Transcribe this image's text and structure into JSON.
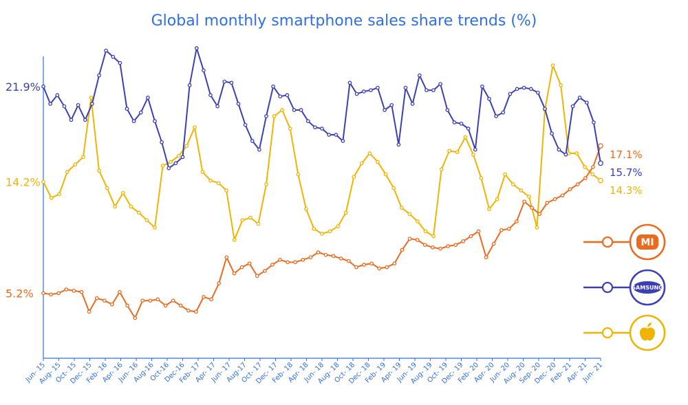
{
  "chart_data": {
    "type": "line",
    "title": "Global monthly smartphone sales share trends (%)",
    "xlabel": "",
    "ylabel": "",
    "ylim": [
      0,
      25
    ],
    "x_tick_labels": [
      "Jun- 15",
      "Aug- 15",
      "Oct- 15",
      "Dec- 15",
      "Feb- 16",
      "Apr- 16",
      "Jun- 16",
      "Aug-16",
      "Oct-16",
      "Dec-16",
      "Feb- 17",
      "Apr- 17",
      "Jun- 17",
      "Aug-17",
      "Oct- 17",
      "Dec- 17",
      "Feb- 18",
      "Apr- 18",
      "Jun- 18",
      "Aug- 18",
      "Oct- 18",
      "Dec- 18",
      "Feb- 19",
      "Apr- 19",
      "Jun- 19",
      "Aug- 19",
      "Oct- 19",
      "Dec- 19",
      "Feb- 20",
      "Apr- 20",
      "Jun- 20",
      "Aug- 20",
      "Sep- 20",
      "Dec- 20",
      "Feb- 21",
      "Apr- 21",
      "Jun- 21"
    ],
    "y_start_labels": [
      {
        "text": "21.9%",
        "value": 21.9,
        "series": "Samsung"
      },
      {
        "text": "14.2%",
        "value": 14.2,
        "series": "Apple"
      },
      {
        "text": "5.2%",
        "value": 5.2,
        "series": "Xiaomi"
      }
    ],
    "series": [
      {
        "name": "Samsung",
        "color": "#3b3fb5",
        "end_label": "15.7%",
        "icon_label": "SAMSUNG",
        "values": [
          21.9,
          20.5,
          21.2,
          20.3,
          19.2,
          20.4,
          19.2,
          20.5,
          22.8,
          24.8,
          24.3,
          23.8,
          20.1,
          19.1,
          19.8,
          21.0,
          19.1,
          17.4,
          15.3,
          15.7,
          16.2,
          22.0,
          25.0,
          23.2,
          21.2,
          20.3,
          22.3,
          22.2,
          20.5,
          18.8,
          17.5,
          16.8,
          19.5,
          21.9,
          21.1,
          21.2,
          20.0,
          20.0,
          19.1,
          18.6,
          18.5,
          18.0,
          18.0,
          17.5,
          22.2,
          21.3,
          21.5,
          21.6,
          21.8,
          20.0,
          20.4,
          17.2,
          21.8,
          20.5,
          22.8,
          21.6,
          21.6,
          22.1,
          20.0,
          19.0,
          18.9,
          18.5,
          16.8,
          21.9,
          20.9,
          19.5,
          19.8,
          21.3,
          21.7,
          21.8,
          21.7,
          21.4,
          20.1,
          18.1,
          16.8,
          16.4,
          20.3,
          21.0,
          20.6,
          19.0,
          15.7
        ]
      },
      {
        "name": "Apple",
        "color": "#f0b400",
        "end_label": "14.3%",
        "icon_label": "",
        "values": [
          14.2,
          12.9,
          13.2,
          15.0,
          15.6,
          16.2,
          21.0,
          15.1,
          13.7,
          12.2,
          13.3,
          12.2,
          11.7,
          11.1,
          10.5,
          15.5,
          15.8,
          16.3,
          17.1,
          18.6,
          15.0,
          14.3,
          14.1,
          13.5,
          9.5,
          11.1,
          11.3,
          10.8,
          14.0,
          19.5,
          20.0,
          18.5,
          14.8,
          12.0,
          10.4,
          10.0,
          10.2,
          10.6,
          11.7,
          14.6,
          15.7,
          16.5,
          15.8,
          14.8,
          13.7,
          12.1,
          11.6,
          11.0,
          10.2,
          9.8,
          15.2,
          16.7,
          16.6,
          17.8,
          16.4,
          14.5,
          12.0,
          12.8,
          14.8,
          14.0,
          13.5,
          13.0,
          10.5,
          20.0,
          23.6,
          22.0,
          16.5,
          16.5,
          15.4,
          14.8,
          14.3
        ]
      },
      {
        "name": "Xiaomi",
        "color": "#ec6a1e",
        "end_label": "17.1%",
        "icon_label": "MI",
        "values": [
          5.2,
          5.1,
          5.2,
          5.5,
          5.4,
          5.3,
          3.7,
          4.8,
          4.6,
          4.3,
          5.3,
          4.2,
          3.2,
          4.6,
          4.6,
          4.7,
          4.2,
          4.6,
          4.2,
          3.8,
          3.7,
          4.9,
          4.7,
          6.0,
          8.1,
          6.8,
          7.3,
          7.6,
          6.6,
          7.0,
          7.5,
          7.9,
          7.7,
          7.7,
          7.9,
          8.1,
          8.5,
          8.3,
          8.2,
          8.0,
          7.8,
          7.3,
          7.5,
          7.6,
          7.2,
          7.3,
          7.6,
          8.7,
          9.6,
          9.5,
          9.1,
          8.9,
          8.8,
          9.0,
          9.1,
          9.4,
          9.8,
          10.2,
          8.1,
          9.2,
          10.3,
          10.4,
          11.0,
          12.6,
          12.1,
          11.6,
          12.5,
          12.8,
          13.1,
          13.6,
          14.0,
          14.5,
          15.4,
          17.1
        ]
      }
    ]
  }
}
